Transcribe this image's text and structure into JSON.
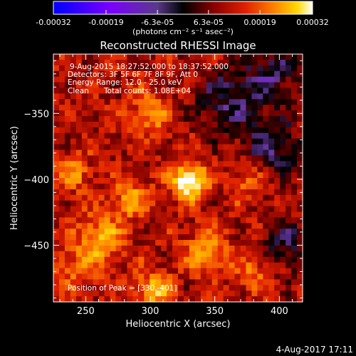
{
  "colorbar": {
    "tick_labels": [
      "-0.00032",
      "-0.00019",
      "-6.3e-05",
      "6.3e-05",
      "0.00019",
      "0.00032"
    ],
    "tick_values": [
      -0.00032,
      -0.00019,
      -6.3e-05,
      6.3e-05,
      0.00019,
      0.00032
    ],
    "range": [
      -0.00032,
      0.00032
    ],
    "units_line": "(photons cm⁻² s⁻¹ asec⁻²)"
  },
  "image_info": {
    "time_range": "9-Aug-2015 18:27:52.000 to 18:37:52.000",
    "detectors": "Detectors: 3F 5F 6F 7F 8F 9F, Att 0",
    "energy": "Energy Range: 12.0 - 25.0 keV",
    "clean": "Clean",
    "counts": "Total counts: 1.08E+04",
    "peak": "Position of Peak = [330,-401]"
  },
  "footer_date": "4-Aug-2017 17:11",
  "chart_data": {
    "type": "heatmap",
    "title": "Reconstructed RHESSI Image",
    "xlabel": "Heliocentric X (arcsec)",
    "ylabel": "Heliocentric Y (arcsec)",
    "xlim": [
      225,
      418
    ],
    "ylim": [
      -493,
      -305
    ],
    "x_ticks": [
      250,
      300,
      350,
      400
    ],
    "y_ticks": [
      -350,
      -400,
      -450
    ],
    "x_tick_labels": [
      "250",
      "300",
      "350",
      "400"
    ],
    "y_tick_labels": [
      "−350",
      "−400",
      "−450"
    ],
    "colormap": [
      "#0000ff",
      "#8a00ff",
      "#6a3aa8",
      "#000000",
      "#7a0000",
      "#e02000",
      "#ff8000",
      "#ffd000",
      "#ffffff"
    ],
    "peak": [
      330,
      -401
    ],
    "peak_value": 0.00032,
    "sources": [
      {
        "x": 330,
        "y": -401,
        "amp": 1.0,
        "sigma": 9
      },
      {
        "x": 262,
        "y": -445,
        "amp": 0.55,
        "sigma": 12
      },
      {
        "x": 302,
        "y": -485,
        "amp": 0.55,
        "sigma": 10
      },
      {
        "x": 285,
        "y": -415,
        "amp": 0.45,
        "sigma": 10
      },
      {
        "x": 343,
        "y": -455,
        "amp": 0.45,
        "sigma": 12
      },
      {
        "x": 240,
        "y": -395,
        "amp": 0.4,
        "sigma": 10
      },
      {
        "x": 300,
        "y": -350,
        "amp": 0.35,
        "sigma": 12
      },
      {
        "x": 380,
        "y": -470,
        "amp": 0.3,
        "sigma": 10
      },
      {
        "x": 375,
        "y": -400,
        "amp": 0.3,
        "sigma": 10
      },
      {
        "x": 360,
        "y": -340,
        "amp": -0.45,
        "sigma": 18
      },
      {
        "x": 395,
        "y": -375,
        "amp": -0.5,
        "sigma": 15
      },
      {
        "x": 395,
        "y": -320,
        "amp": -0.45,
        "sigma": 14
      },
      {
        "x": 405,
        "y": -450,
        "amp": -0.4,
        "sigma": 14
      },
      {
        "x": 240,
        "y": -470,
        "amp": 0.25,
        "sigma": 14
      }
    ]
  }
}
